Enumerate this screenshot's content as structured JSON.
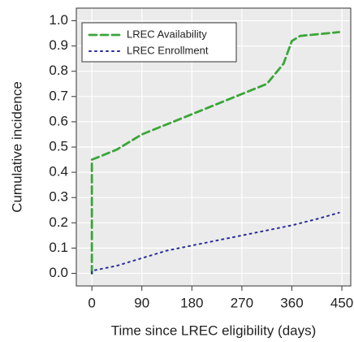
{
  "chart_data": {
    "type": "line",
    "x_label": "Time since LREC eligibility (days)",
    "y_label": "Cumulative incidence",
    "xlim": [
      -28,
      466
    ],
    "ylim": [
      -0.05,
      1.05
    ],
    "xticks": [
      0,
      90,
      180,
      270,
      360,
      450
    ],
    "yticks": [
      {
        "value": 0,
        "label": "0.0"
      },
      0.1,
      0.2,
      0.3,
      0.4,
      0.5,
      0.6,
      0.7,
      0.8,
      0.9,
      {
        "value": 1,
        "label": "1.0"
      }
    ],
    "grid": true,
    "legend": "top-left",
    "series": [
      {
        "name": "LREC Availability",
        "color": "#3aa63a",
        "dash": "dashed",
        "x": [
          0,
          0,
          45,
          90,
          135,
          180,
          225,
          270,
          315,
          345,
          360,
          375,
          445
        ],
        "values": [
          0,
          0.45,
          0.49,
          0.55,
          0.59,
          0.63,
          0.67,
          0.71,
          0.75,
          0.83,
          0.92,
          0.94,
          0.955
        ]
      },
      {
        "name": "LREC Enrollment",
        "color": "#2a2a9a",
        "dash": "dotted",
        "x": [
          0,
          0,
          45,
          90,
          135,
          180,
          225,
          270,
          315,
          360,
          405,
          445
        ],
        "values": [
          0,
          0.01,
          0.03,
          0.06,
          0.09,
          0.11,
          0.13,
          0.15,
          0.17,
          0.19,
          0.215,
          0.24
        ]
      }
    ]
  }
}
